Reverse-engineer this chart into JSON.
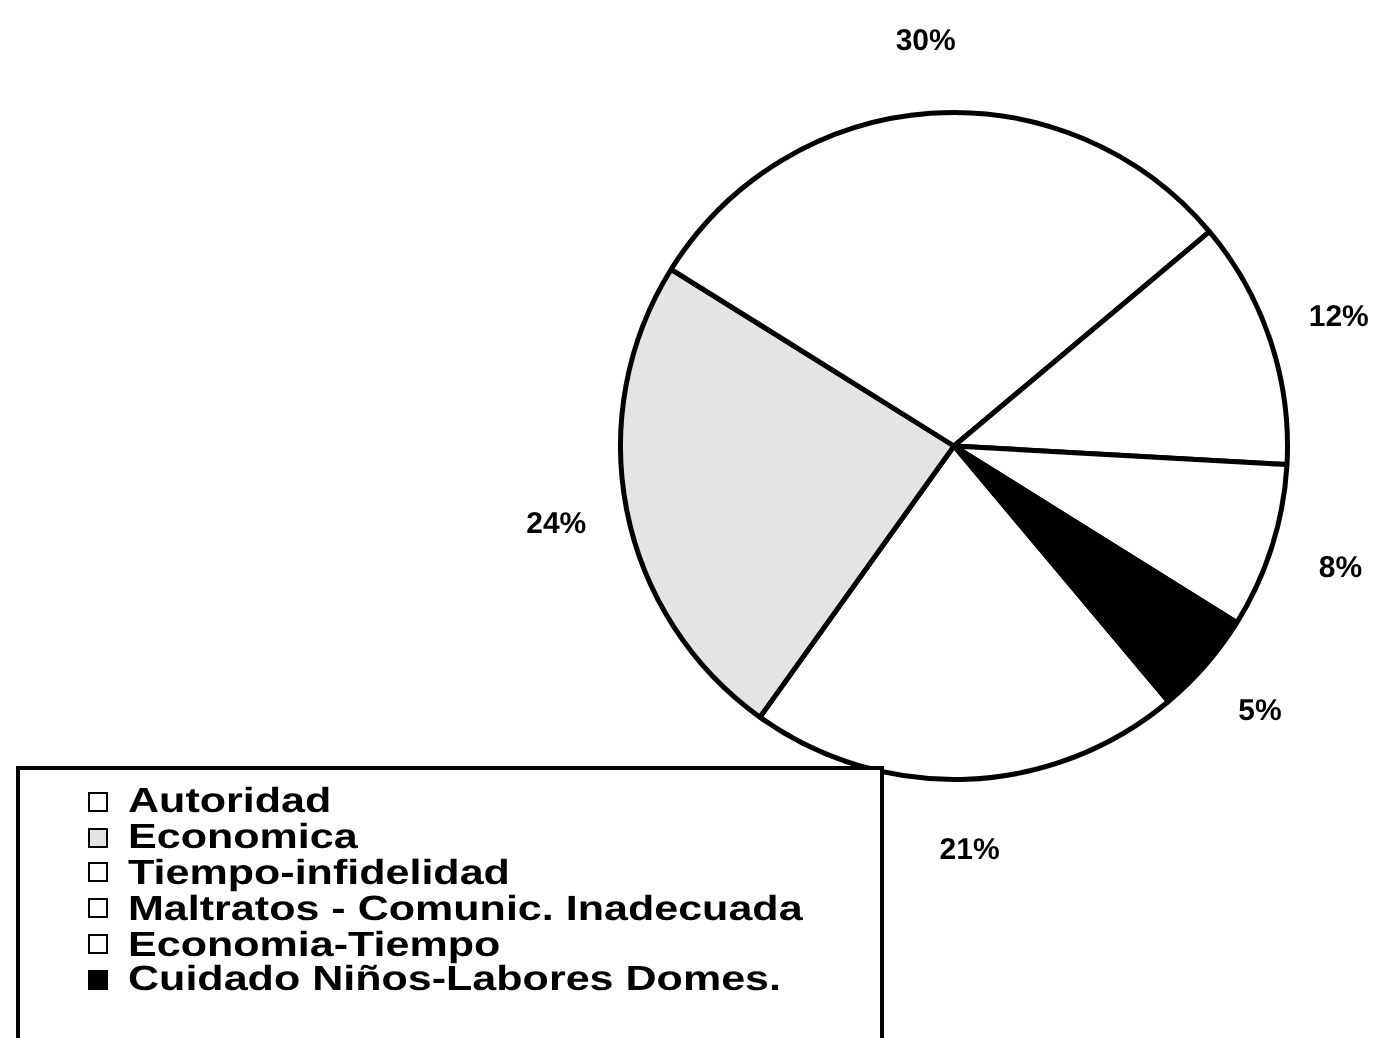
{
  "chart_data": {
    "type": "pie",
    "categories": [
      "Autoridad",
      "Economica",
      "Tiempo-infidelidad",
      "Maltratos - Comunic. Inadecuada",
      "Economia-Tiempo",
      "Cuidado Niños-Labores Domes."
    ],
    "values": [
      21,
      24,
      30,
      12,
      8,
      5
    ],
    "colors": [
      "#ffffff",
      "#e4e4e4",
      "#ffffff",
      "#ffffff",
      "#ffffff",
      "#000000"
    ],
    "value_labels": [
      "21%",
      "24%",
      "30%",
      "12%",
      "8%",
      "5%"
    ],
    "legend": "bottom left"
  }
}
